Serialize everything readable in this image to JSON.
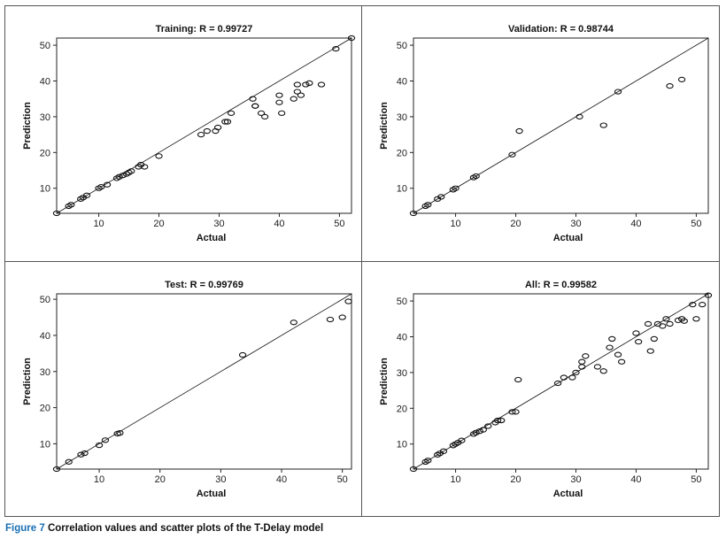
{
  "caption": {
    "figure_label": "Figure 7",
    "text": "Correlation values and scatter plots of the T-Delay model"
  },
  "colors": {
    "axis": "#222222",
    "marker": "#111111",
    "line": "#111111",
    "caption_accent": "#1a6fb3"
  },
  "chart_data": [
    {
      "type": "scatter",
      "title": "Training: R = 0.99727",
      "xlabel": "Actual",
      "ylabel": "Prediction",
      "xlim": [
        3,
        52
      ],
      "ylim": [
        3,
        52
      ],
      "xticks": [
        10,
        20,
        30,
        40,
        50
      ],
      "yticks": [
        10,
        20,
        30,
        40,
        50
      ],
      "fit_line": [
        [
          3,
          3
        ],
        [
          52,
          52
        ]
      ],
      "x": [
        3,
        5,
        5.4,
        7,
        7.4,
        8,
        10,
        10.4,
        11.4,
        13,
        13.4,
        14,
        14.6,
        15,
        15.4,
        16.6,
        17,
        17.6,
        20,
        27,
        28,
        29.4,
        29.8,
        31,
        31.4,
        32,
        35.6,
        36,
        36,
        37,
        37.6,
        40,
        40,
        40.4,
        42.4,
        43,
        43,
        43.6,
        44.4,
        45,
        47,
        49.4,
        52
      ],
      "y": [
        3,
        5,
        5.4,
        7,
        7.4,
        8,
        10,
        10.4,
        11,
        12.8,
        13.2,
        13.6,
        14,
        14.4,
        14.8,
        16,
        16.6,
        16,
        19,
        25,
        26,
        26,
        27,
        28.6,
        28.6,
        31,
        35,
        33,
        33,
        31,
        30,
        36,
        34,
        31,
        35,
        37,
        39,
        36,
        39,
        39.4,
        39,
        49,
        52
      ]
    },
    {
      "type": "scatter",
      "title": "Validation: R = 0.98744",
      "xlabel": "Actual",
      "ylabel": "Prediction",
      "xlim": [
        3,
        52
      ],
      "ylim": [
        3,
        52
      ],
      "xticks": [
        10,
        20,
        30,
        40,
        50
      ],
      "yticks": [
        10,
        20,
        30,
        40,
        50
      ],
      "fit_line": [
        [
          3,
          3
        ],
        [
          52,
          52
        ]
      ],
      "x": [
        3,
        5,
        5.4,
        7,
        7.6,
        9.6,
        10,
        13,
        13.4,
        19.4,
        20.6,
        30.6,
        34.6,
        37,
        45.6,
        47.6
      ],
      "y": [
        3,
        5,
        5.4,
        7,
        7.6,
        9.6,
        10,
        13,
        13.4,
        19.4,
        26,
        30,
        27.6,
        37,
        38.6,
        40.4
      ]
    },
    {
      "type": "scatter",
      "title": "Test: R = 0.99769",
      "xlabel": "Actual",
      "ylabel": "Prediction",
      "xlim": [
        3,
        51.5
      ],
      "ylim": [
        3,
        51.5
      ],
      "xticks": [
        10,
        20,
        30,
        40,
        50
      ],
      "yticks": [
        10,
        20,
        30,
        40,
        50
      ],
      "fit_line": [
        [
          3,
          3
        ],
        [
          51.5,
          51.5
        ]
      ],
      "x": [
        3,
        5,
        7,
        7.6,
        10,
        11,
        13,
        13.4,
        33.6,
        42,
        48,
        50,
        51
      ],
      "y": [
        3,
        5,
        7,
        7.4,
        9.6,
        11,
        12.8,
        13,
        34.6,
        43.6,
        44.4,
        45,
        49.4
      ]
    },
    {
      "type": "scatter",
      "title": "All: R = 0.99582",
      "xlabel": "Actual",
      "ylabel": "Prediction",
      "xlim": [
        3,
        52
      ],
      "ylim": [
        3,
        52
      ],
      "xticks": [
        10,
        20,
        30,
        40,
        50
      ],
      "yticks": [
        10,
        20,
        30,
        40,
        50
      ],
      "fit_line": [
        [
          3,
          3
        ],
        [
          52,
          52
        ]
      ],
      "x": [
        3,
        5,
        5.4,
        7,
        7.4,
        8,
        9.6,
        10,
        10.4,
        11,
        13,
        13.4,
        14,
        14.6,
        15.4,
        16.6,
        17,
        17.6,
        19.4,
        20,
        20.4,
        27,
        28,
        29.4,
        30,
        31,
        31,
        31.6,
        33.6,
        34.6,
        35.6,
        36,
        37,
        37.6,
        40,
        40.4,
        42,
        42.4,
        43,
        43.6,
        44.4,
        45,
        45.6,
        47,
        47.6,
        48,
        49.4,
        50,
        51,
        52
      ],
      "y": [
        3,
        5,
        5.4,
        7,
        7.4,
        8,
        9.6,
        10,
        10.4,
        11,
        12.8,
        13.2,
        13.6,
        14,
        15,
        16,
        16.6,
        16.6,
        19,
        19,
        28,
        27,
        28.6,
        28.6,
        30,
        31.6,
        33,
        34.6,
        31.6,
        30.4,
        37,
        39.4,
        35,
        33,
        41,
        38.6,
        43.6,
        36,
        39.4,
        43.6,
        43,
        45,
        43.6,
        44.6,
        45,
        44.4,
        49,
        45,
        49,
        51.6
      ]
    }
  ]
}
